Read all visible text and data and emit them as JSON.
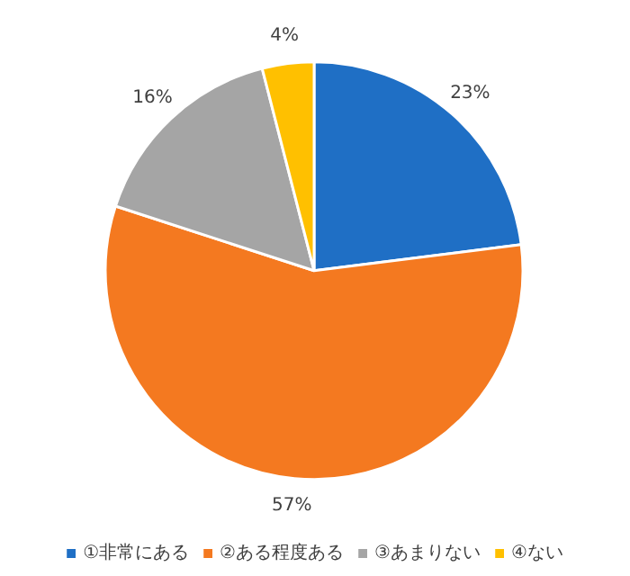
{
  "chart_data": {
    "type": "pie",
    "categories": [
      "①非常にある",
      "②ある程度ある",
      "③あまりない",
      "④ない"
    ],
    "values": [
      23,
      57,
      16,
      4
    ],
    "colors": [
      "#1f6fc5",
      "#f47920",
      "#a5a5a5",
      "#ffc000"
    ],
    "value_labels": [
      "23%",
      "57%",
      "16%",
      "4%"
    ],
    "legend": "bottom"
  }
}
